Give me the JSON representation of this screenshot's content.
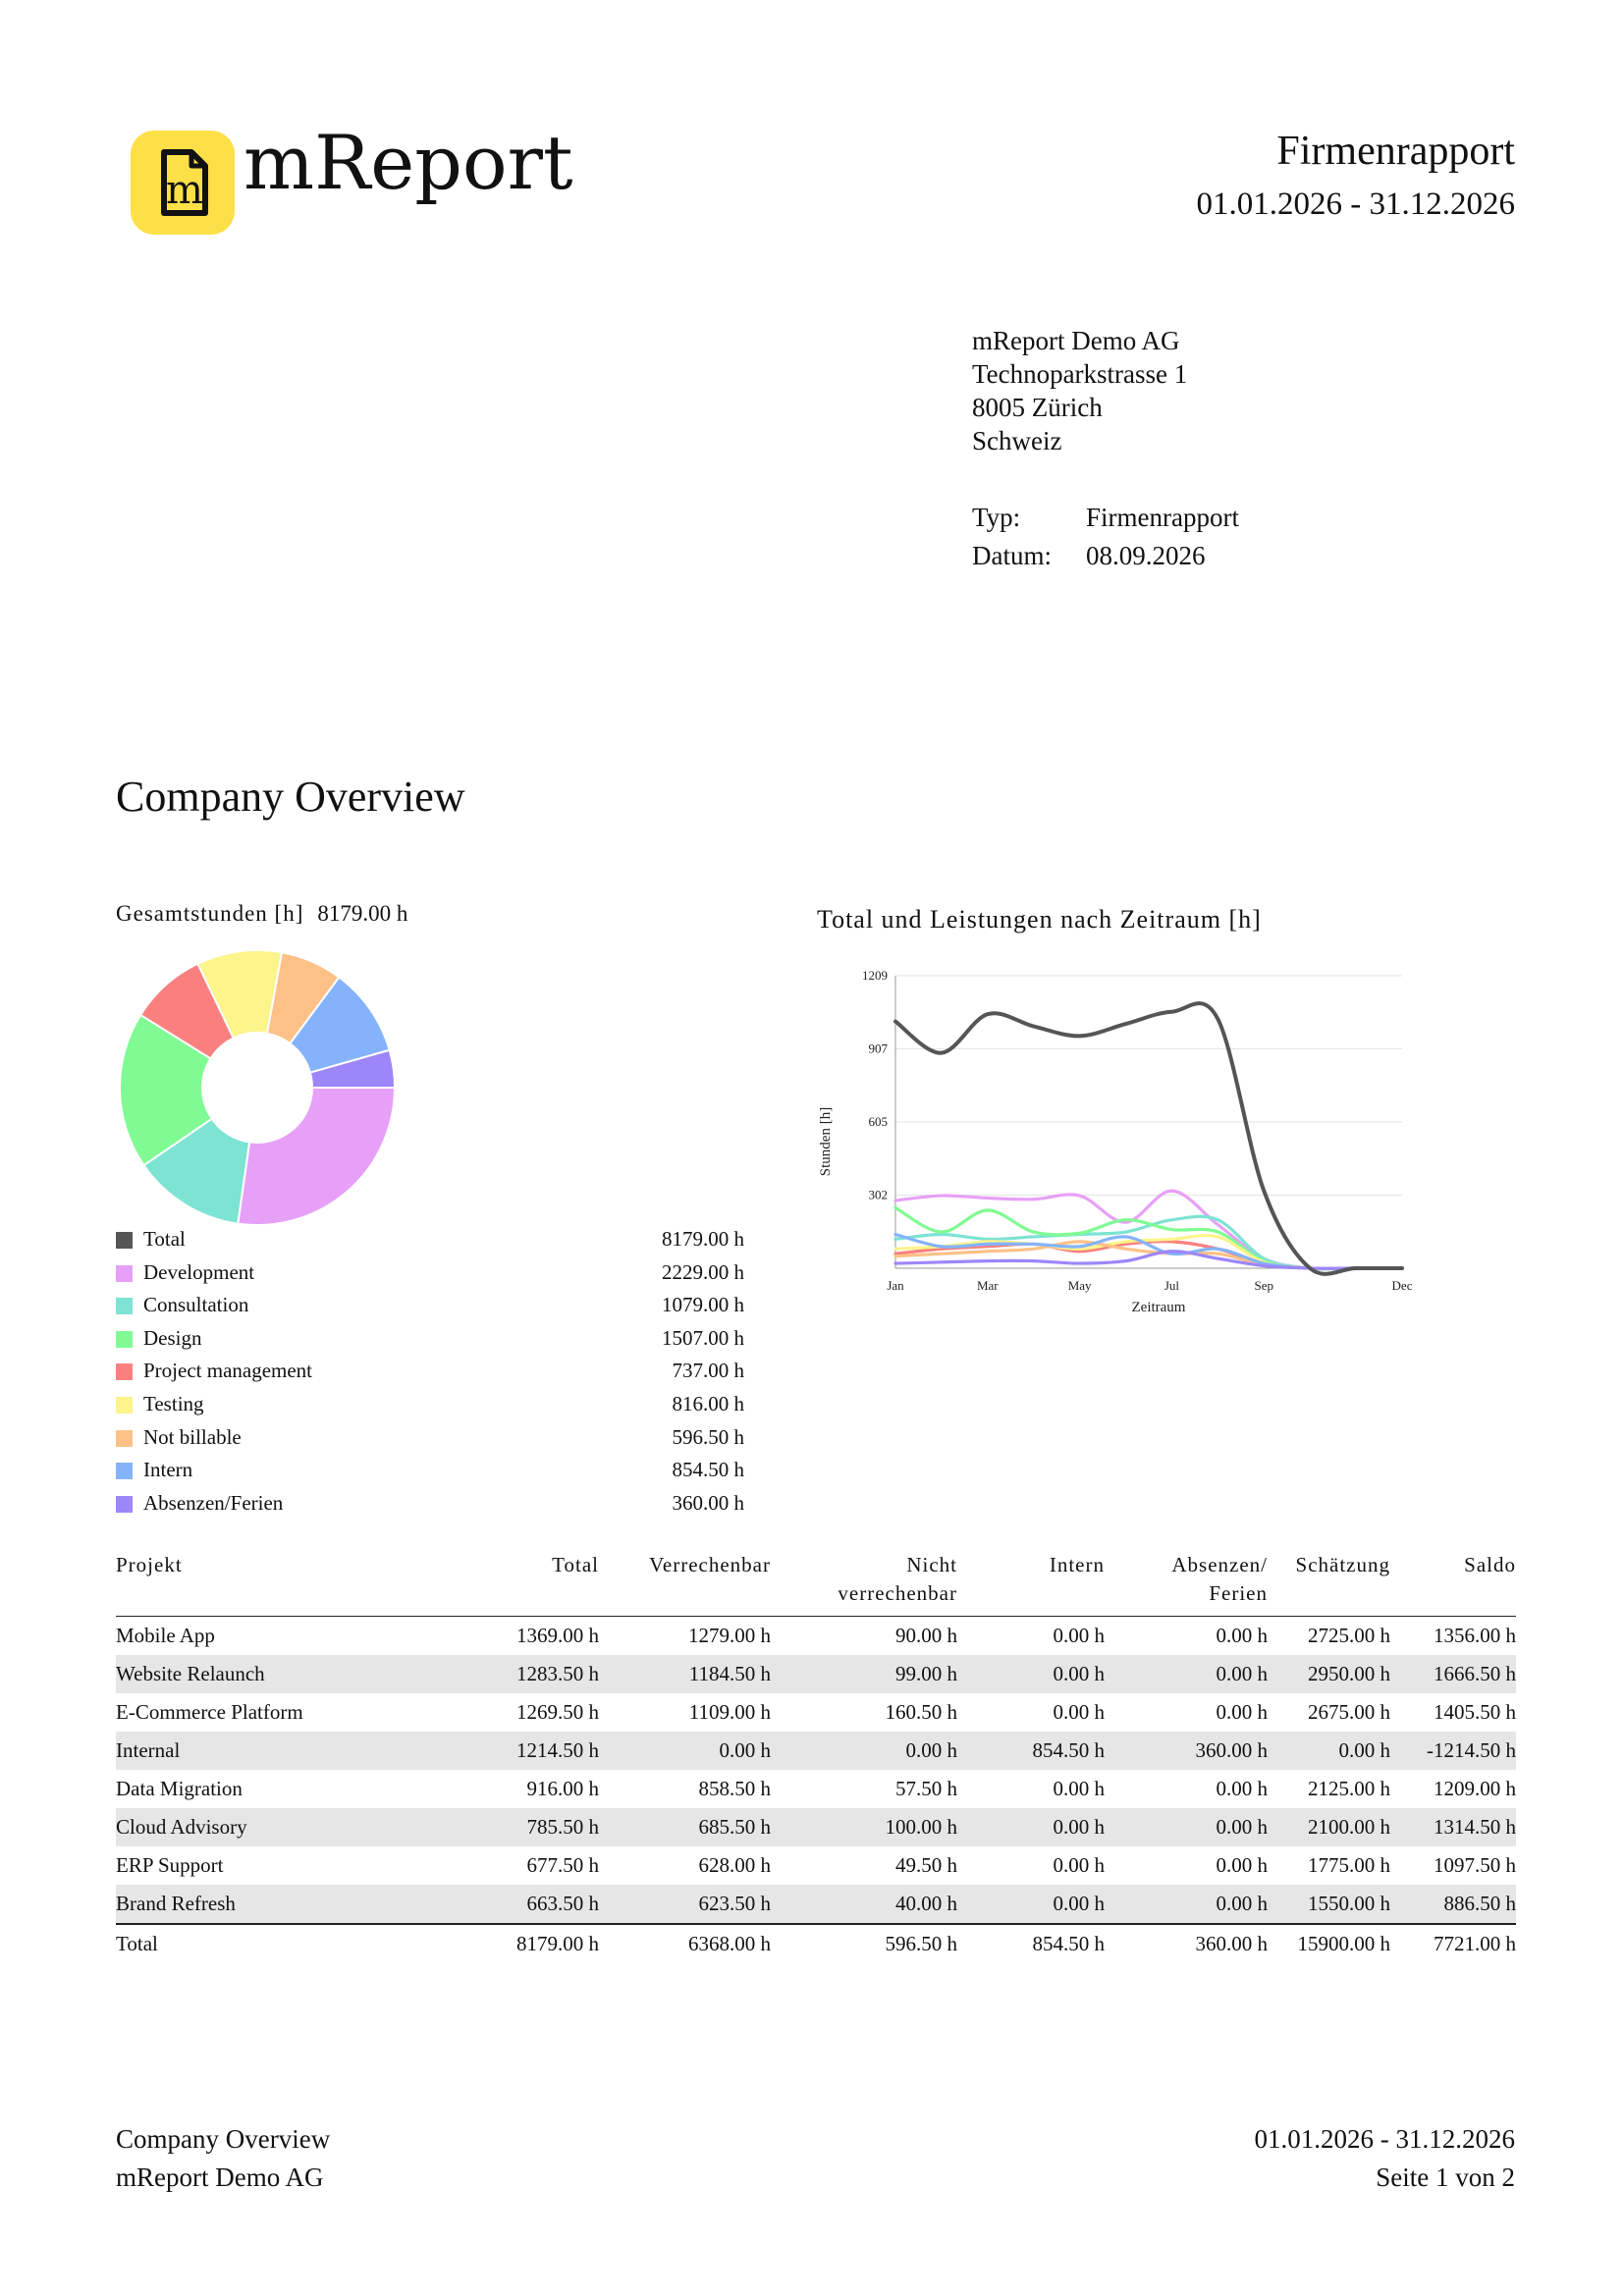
{
  "header": {
    "brand": "mReport",
    "logo_letter": "m",
    "doc_title": "Firmenrapport",
    "period": "01.01.2026 - 31.12.2026"
  },
  "address": {
    "line1": "mReport Demo AG",
    "line2": "Technoparkstrasse 1",
    "line3": "8005 Zürich",
    "line4": "Schweiz"
  },
  "meta": {
    "typ_label": "Typ:",
    "typ_value": "Firmenrapport",
    "datum_label": "Datum:",
    "datum_value": "08.09.2026"
  },
  "section": {
    "title": "Company Overview",
    "total_hours_label": "Gesamtstunden [h]",
    "total_hours_value": "8179.00 h"
  },
  "legend": [
    {
      "label": "Total",
      "value": "8179.00 h",
      "color": "#555555"
    },
    {
      "label": "Development",
      "value": "2229.00 h",
      "color": "#e7a0f7"
    },
    {
      "label": "Consultation",
      "value": "1079.00 h",
      "color": "#7de3d3"
    },
    {
      "label": "Design",
      "value": "1507.00 h",
      "color": "#80fb93"
    },
    {
      "label": "Project management",
      "value": "737.00 h",
      "color": "#fa8080"
    },
    {
      "label": "Testing",
      "value": "816.00 h",
      "color": "#fdf48b"
    },
    {
      "label": "Not billable",
      "value": "596.50 h",
      "color": "#fdc187"
    },
    {
      "label": "Intern",
      "value": "854.50 h",
      "color": "#84b3fb"
    },
    {
      "label": "Absenzen/Ferien",
      "value": "360.00 h",
      "color": "#9d86f9"
    }
  ],
  "chart_data": [
    {
      "type": "pie",
      "title": "Gesamtstunden [h]",
      "categories": [
        "Development",
        "Consultation",
        "Design",
        "Project management",
        "Testing",
        "Not billable",
        "Intern",
        "Absenzen/Ferien"
      ],
      "values": [
        2229.0,
        1079.0,
        1507.0,
        737.0,
        816.0,
        596.5,
        854.5,
        360.0
      ],
      "colors": [
        "#e7a0f7",
        "#7de3d3",
        "#80fb93",
        "#fa8080",
        "#fdf48b",
        "#fdc187",
        "#84b3fb",
        "#9d86f9"
      ],
      "donut": true
    },
    {
      "type": "line",
      "title": "Total und Leistungen nach Zeitraum [h]",
      "xlabel": "Zeitraum",
      "ylabel": "Stunden [h]",
      "x_ticks": [
        "Jan",
        "Mar",
        "May",
        "Jul",
        "Sep",
        "Dec"
      ],
      "y_ticks": [
        302,
        605,
        907,
        1209
      ],
      "ylim": [
        0,
        1209
      ],
      "x": [
        "Jan",
        "Feb",
        "Mar",
        "Apr",
        "May",
        "Jun",
        "Jul",
        "Aug",
        "Sep",
        "Oct",
        "Nov",
        "Dec"
      ],
      "grid": true,
      "series": [
        {
          "color": "#555555",
          "values": [
            1020,
            890,
            1050,
            1000,
            960,
            1010,
            1060,
            1030,
            320,
            0,
            0,
            0
          ]
        },
        {
          "color": "#e7a0f7",
          "values": [
            280,
            300,
            290,
            285,
            300,
            190,
            320,
            180,
            40,
            0,
            0,
            0
          ]
        },
        {
          "color": "#7de3d3",
          "values": [
            120,
            140,
            120,
            130,
            140,
            150,
            200,
            200,
            40,
            0,
            0,
            0
          ]
        },
        {
          "color": "#80fb93",
          "values": [
            250,
            150,
            240,
            150,
            145,
            200,
            160,
            150,
            30,
            0,
            0,
            0
          ]
        },
        {
          "color": "#fa8080",
          "values": [
            60,
            80,
            90,
            100,
            70,
            100,
            110,
            80,
            20,
            0,
            0,
            0
          ]
        },
        {
          "color": "#fdf48b",
          "values": [
            80,
            90,
            110,
            100,
            80,
            110,
            120,
            130,
            25,
            0,
            0,
            0
          ]
        },
        {
          "color": "#fdc187",
          "values": [
            50,
            60,
            70,
            80,
            110,
            80,
            60,
            60,
            15,
            0,
            0,
            0
          ]
        },
        {
          "color": "#84b3fb",
          "values": [
            140,
            90,
            100,
            100,
            90,
            130,
            60,
            80,
            20,
            0,
            0,
            0
          ]
        },
        {
          "color": "#9d86f9",
          "values": [
            20,
            25,
            30,
            30,
            20,
            30,
            70,
            40,
            10,
            0,
            0,
            0
          ]
        }
      ]
    }
  ],
  "table": {
    "headers": [
      {
        "l1": "Projekt",
        "l2": ""
      },
      {
        "l1": "Total",
        "l2": ""
      },
      {
        "l1": "Verrechenbar",
        "l2": ""
      },
      {
        "l1": "Nicht",
        "l2": "verrechenbar"
      },
      {
        "l1": "Intern",
        "l2": ""
      },
      {
        "l1": "Absenzen/",
        "l2": "Ferien"
      },
      {
        "l1": "Schätzung",
        "l2": ""
      },
      {
        "l1": "Saldo",
        "l2": ""
      }
    ],
    "rows": [
      [
        "Mobile App",
        "1369.00 h",
        "1279.00 h",
        "90.00 h",
        "0.00 h",
        "0.00 h",
        "2725.00 h",
        "1356.00 h"
      ],
      [
        "Website Relaunch",
        "1283.50 h",
        "1184.50 h",
        "99.00 h",
        "0.00 h",
        "0.00 h",
        "2950.00 h",
        "1666.50 h"
      ],
      [
        "E-Commerce Platform",
        "1269.50 h",
        "1109.00 h",
        "160.50 h",
        "0.00 h",
        "0.00 h",
        "2675.00 h",
        "1405.50 h"
      ],
      [
        "Internal",
        "1214.50 h",
        "0.00 h",
        "0.00 h",
        "854.50 h",
        "360.00 h",
        "0.00 h",
        "-1214.50 h"
      ],
      [
        "Data Migration",
        "916.00 h",
        "858.50 h",
        "57.50 h",
        "0.00 h",
        "0.00 h",
        "2125.00 h",
        "1209.00 h"
      ],
      [
        "Cloud Advisory",
        "785.50 h",
        "685.50 h",
        "100.00 h",
        "0.00 h",
        "0.00 h",
        "2100.00 h",
        "1314.50 h"
      ],
      [
        "ERP Support",
        "677.50 h",
        "628.00 h",
        "49.50 h",
        "0.00 h",
        "0.00 h",
        "1775.00 h",
        "1097.50 h"
      ],
      [
        "Brand Refresh",
        "663.50 h",
        "623.50 h",
        "40.00 h",
        "0.00 h",
        "0.00 h",
        "1550.00 h",
        "886.50 h"
      ]
    ],
    "total": [
      "Total",
      "8179.00 h",
      "6368.00 h",
      "596.50 h",
      "854.50 h",
      "360.00 h",
      "15900.00 h",
      "7721.00 h"
    ]
  },
  "footer": {
    "left1": "Company Overview",
    "left2": "mReport Demo AG",
    "right1": "01.01.2026 - 31.12.2026",
    "right2": "Seite 1 von 2"
  }
}
